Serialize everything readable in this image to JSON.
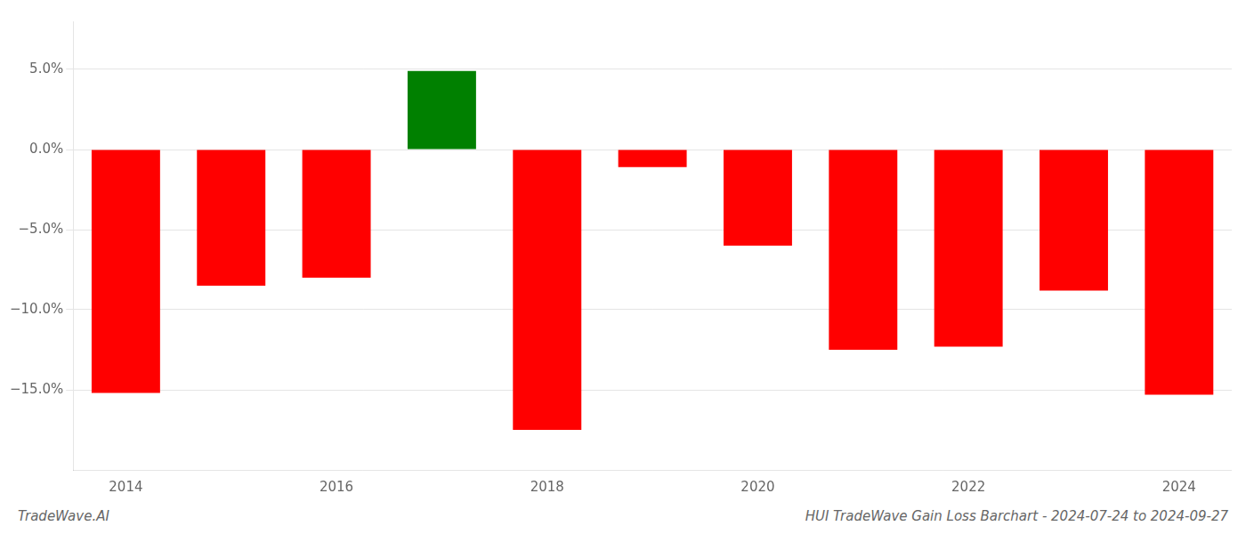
{
  "chart_data": {
    "type": "bar",
    "title": "HUI TradeWave Gain Loss Barchart - 2024-07-24 to 2024-09-27",
    "annotations": [
      "TradeWave.AI"
    ],
    "categories": [
      "2014",
      null,
      "2016",
      null,
      "2018",
      null,
      "2020",
      null,
      "2022",
      null,
      "2024"
    ],
    "values": [
      -15.2,
      -8.5,
      -8.0,
      4.9,
      -17.5,
      -1.1,
      -6.0,
      -12.5,
      -12.3,
      -8.8,
      -15.3
    ],
    "colors": [
      "#ff0000",
      "#ff0000",
      "#ff0000",
      "#008000",
      "#ff0000",
      "#ff0000",
      "#ff0000",
      "#ff0000",
      "#ff0000",
      "#ff0000",
      "#ff0000"
    ],
    "ylim": [
      -20,
      8.0
    ],
    "yticks": [
      {
        "value": -15.0,
        "label": "−15.0%"
      },
      {
        "value": -10.0,
        "label": "−10.0%"
      },
      {
        "value": -5.0,
        "label": "−5.0%"
      },
      {
        "value": 0.0,
        "label": "0.0%"
      },
      {
        "value": 5.0,
        "label": "5.0%"
      }
    ],
    "grid": true
  }
}
